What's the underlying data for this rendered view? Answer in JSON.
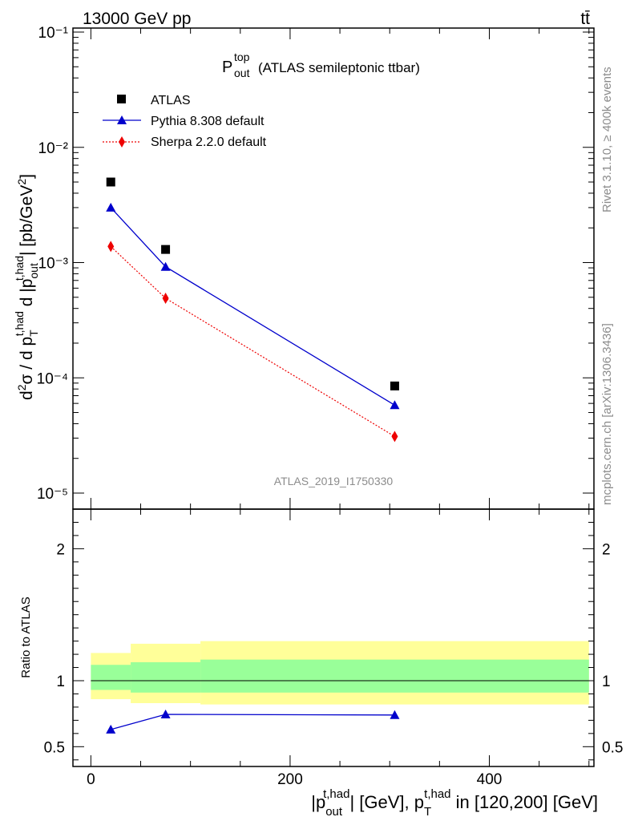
{
  "header": {
    "energy_label": "13000 GeV pp",
    "process_label": "tt̄"
  },
  "side_text": {
    "rivet": "Rivet 3.1.10, ≥ 400k events",
    "mcplots": "mcplots.cern.ch [arXiv:1306.3436]"
  },
  "watermark": "ATLAS_2019_I1750330",
  "colors": {
    "atlas": "#000000",
    "pythia": "#0000cc",
    "sherpa": "#ee0000",
    "band_outer": "#ffff99",
    "band_inner": "#99ff99"
  },
  "chart_data": [
    {
      "type": "scatter",
      "title": "P_out^top (ATLAS semileptonic ttbar)",
      "title_main": "P",
      "title_sub": "out",
      "title_sup": "top",
      "title_rest": "(ATLAS semileptonic ttbar)",
      "ylabel": "d²σ / d p_T^t,had d |p_out^t,had| [pb/GeV²]",
      "yscale": "log",
      "ylim": [
        1e-05,
        0.1
      ],
      "xlim": [
        -18,
        505
      ],
      "y_tick_labels": [
        "10⁻⁵",
        "10⁻⁴",
        "10⁻³",
        "10⁻²",
        "10⁻¹"
      ],
      "legend_position": "top-left",
      "series": [
        {
          "name": "ATLAS",
          "marker": "square",
          "x": [
            20,
            75,
            305
          ],
          "y": [
            0.005,
            0.0013,
            8.5e-05
          ]
        },
        {
          "name": "Pythia 8.308 default",
          "marker": "triangle",
          "line": "solid",
          "x": [
            20,
            75,
            305
          ],
          "y": [
            0.003,
            0.00092,
            5.8e-05
          ]
        },
        {
          "name": "Sherpa 2.2.0 default",
          "marker": "diamond",
          "line": "dotted",
          "x": [
            20,
            75,
            305
          ],
          "y": [
            0.00138,
            0.00049,
            3.1e-05
          ]
        }
      ]
    },
    {
      "type": "line",
      "ylabel": "Ratio to ATLAS",
      "xlabel": "|p_out^t,had| [GeV], p_T^t,had in [120,200] [GeV]",
      "ylim": [
        0.35,
        2.3
      ],
      "xlim": [
        -18,
        505
      ],
      "y_tick_labels": [
        "0.5",
        "1",
        "2"
      ],
      "x_tick_labels": [
        "0",
        "200",
        "400"
      ],
      "uncertainty_bands": [
        {
          "x_range": [
            0,
            40
          ],
          "outer": [
            0.86,
            1.21
          ],
          "inner": [
            0.93,
            1.12
          ]
        },
        {
          "x_range": [
            40,
            110
          ],
          "outer": [
            0.83,
            1.28
          ],
          "inner": [
            0.91,
            1.14
          ]
        },
        {
          "x_range": [
            110,
            500
          ],
          "outer": [
            0.82,
            1.3
          ],
          "inner": [
            0.91,
            1.16
          ]
        }
      ],
      "series": [
        {
          "name": "Pythia 8.308 default",
          "x": [
            20,
            75,
            305
          ],
          "y": [
            0.63,
            0.745,
            0.74
          ]
        }
      ]
    }
  ]
}
